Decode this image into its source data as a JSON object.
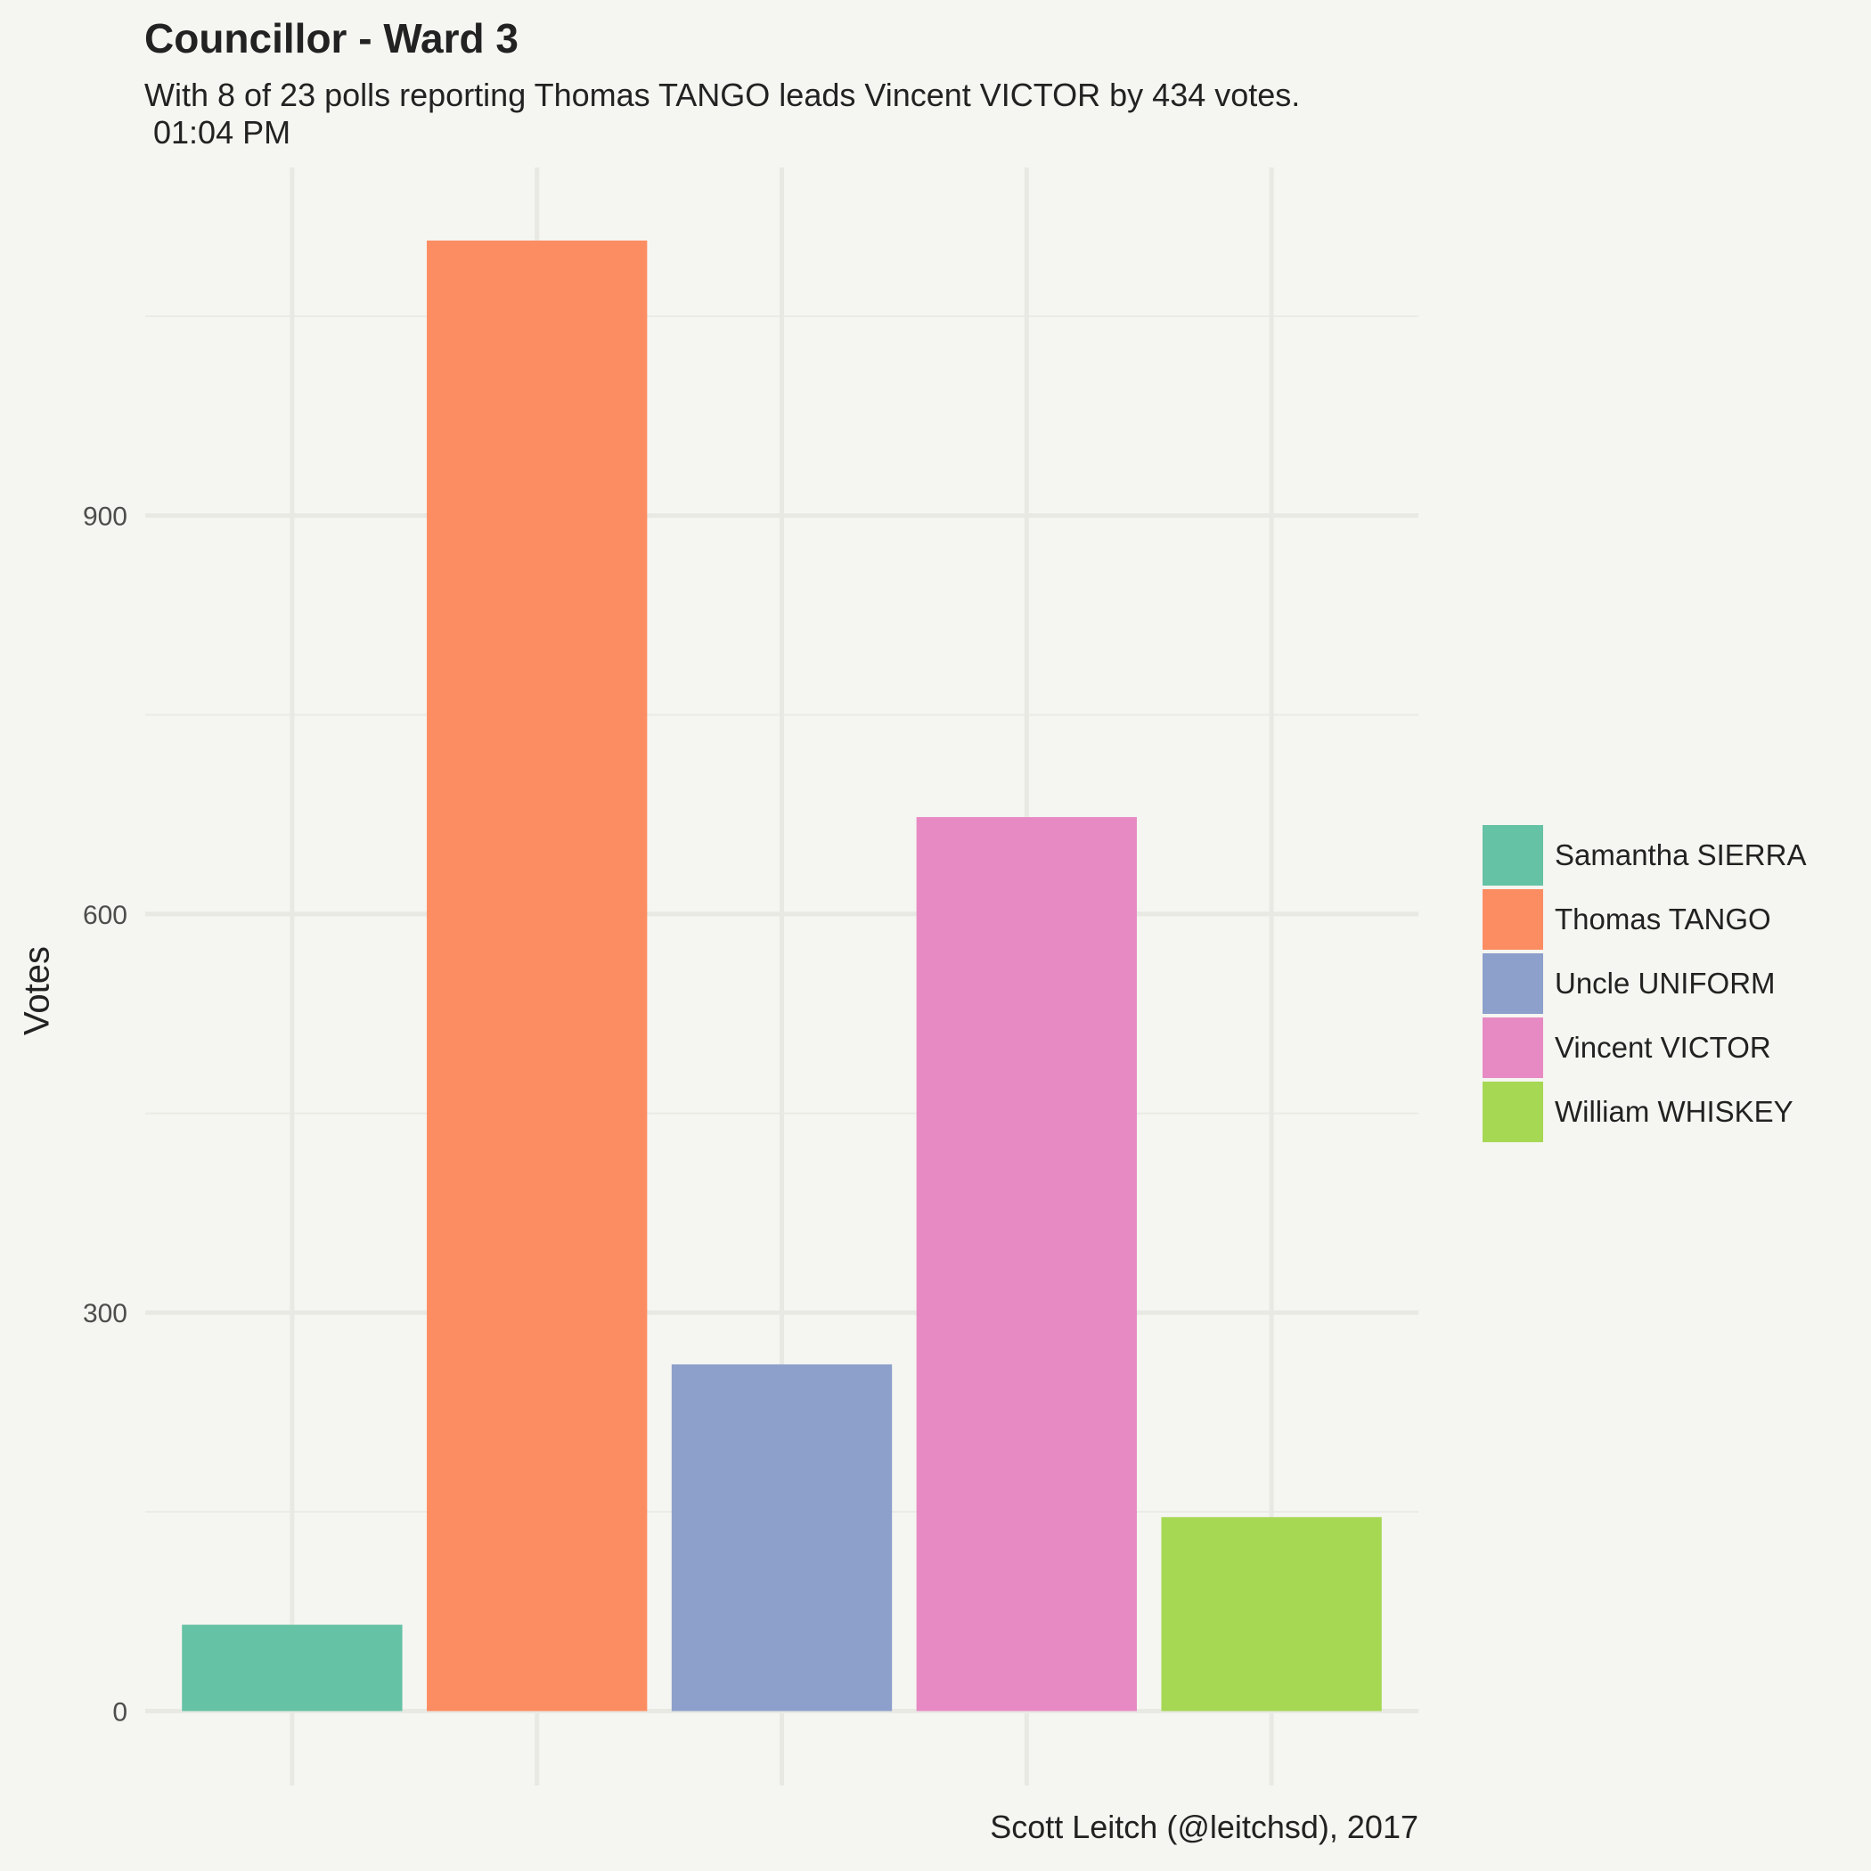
{
  "chart_data": {
    "type": "bar",
    "title": "Councillor - Ward 3",
    "subtitle": "With 8 of 23 polls reporting Thomas TANGO leads Vincent VICTOR by 434 votes.\n 01:04 PM",
    "caption": "Scott Leitch (@leitchsd), 2017",
    "xlabel": "",
    "ylabel": "Votes",
    "categories": [
      "Samantha SIERRA",
      "Thomas TANGO",
      "Uncle UNIFORM",
      "Vincent VICTOR",
      "William WHISKEY"
    ],
    "values": [
      65,
      1107,
      261,
      673,
      146
    ],
    "colors": [
      "#66c2a5",
      "#fc8d62",
      "#8da0cb",
      "#e78ac3",
      "#a6d854"
    ],
    "ylim": [
      -56,
      1162
    ],
    "y_ticks": [
      0,
      300,
      600,
      900
    ],
    "y_tick_labels": [
      "0",
      "300",
      "600",
      "900"
    ],
    "grid": true,
    "legend_position": "right",
    "legend": [
      "Samantha SIERRA",
      "Thomas TANGO",
      "Uncle UNIFORM",
      "Vincent VICTOR",
      "William WHISKEY"
    ]
  }
}
